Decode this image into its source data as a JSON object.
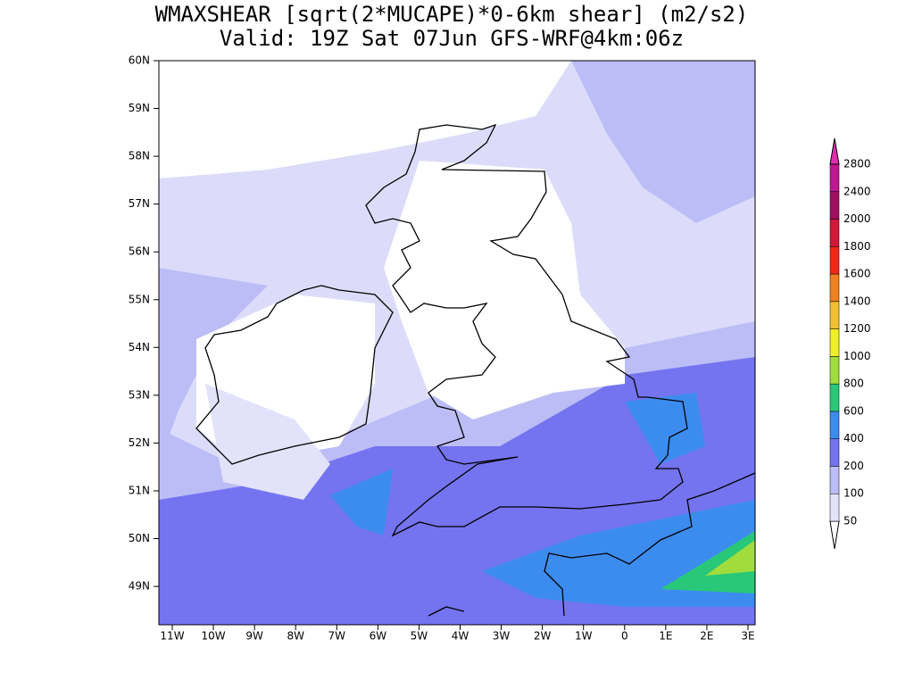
{
  "title": "WMAXSHEAR [sqrt(2*MUCAPE)*0-6km shear] (m2/s2)",
  "subtitle": "Valid: 19Z Sat 07Jun GFS-WRF@4km:06z",
  "lat_labels": [
    "60N",
    "59N",
    "58N",
    "57N",
    "56N",
    "55N",
    "54N",
    "53N",
    "52N",
    "51N",
    "50N",
    "49N"
  ],
  "lon_labels": [
    "11W",
    "10W",
    "9W",
    "8W",
    "7W",
    "6W",
    "5W",
    "4W",
    "3W",
    "2W",
    "1W",
    "0",
    "1E",
    "2E",
    "3E"
  ],
  "colorbar": {
    "levels": [
      50,
      100,
      200,
      400,
      600,
      800,
      1000,
      1200,
      1400,
      1600,
      1800,
      2000,
      2400,
      2800
    ],
    "colors": [
      "#ffffff",
      "#e2e2fb",
      "#bcbdf6",
      "#7474f0",
      "#3c8cf0",
      "#28c878",
      "#a0dc3c",
      "#f0f028",
      "#f0c030",
      "#f08020",
      "#f02818",
      "#d01838",
      "#a01060",
      "#c01890",
      "#e030b0"
    ]
  }
}
